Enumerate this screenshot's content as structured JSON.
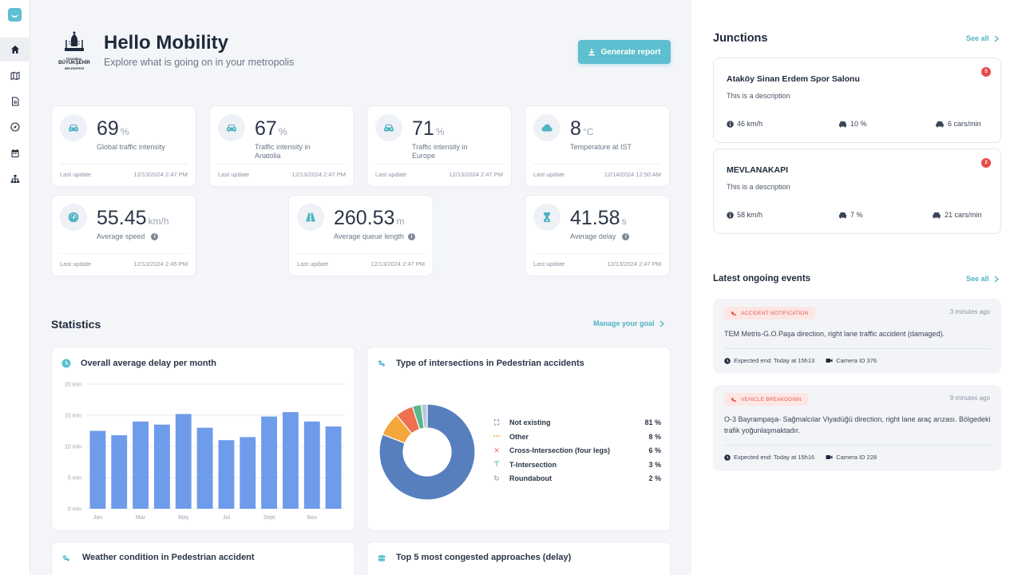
{
  "header": {
    "title": "Hello Mobility",
    "subtitle": "Explore what is going on in your metropolis",
    "brand_lines": [
      "İSTANBUL",
      "BÜYÜKŞEHİR",
      "BELEDİYESİ"
    ],
    "report_button": "Generate report"
  },
  "sidebar": {
    "items": [
      {
        "name": "home-icon",
        "active": true
      },
      {
        "name": "map-icon"
      },
      {
        "name": "document-icon"
      },
      {
        "name": "compass-icon"
      },
      {
        "name": "calendar-icon"
      },
      {
        "name": "network-icon"
      }
    ]
  },
  "kpis": [
    {
      "value": "69",
      "unit": "%",
      "label": "Global traffic intensity",
      "update_label": "Last update",
      "updated": "12/13/2024 2:47 PM",
      "icon": "car-icon"
    },
    {
      "value": "67",
      "unit": "%",
      "label": "Traffic intensity in Anatolia",
      "update_label": "Last update",
      "updated": "12/13/2024 2:47 PM",
      "icon": "car-icon"
    },
    {
      "value": "71",
      "unit": "%",
      "label": "Traffic intensity in Europe",
      "update_label": "Last update",
      "updated": "12/13/2024 2:47 PM",
      "icon": "car-icon"
    },
    {
      "value": "8",
      "unit": "°C",
      "label": "Temperature at IST",
      "update_label": "Last update",
      "updated": "12/14/2024 12:50 AM",
      "icon": "cloud-icon"
    },
    {
      "value": "55.45",
      "unit": "km/h",
      "label": "Average speed",
      "update_label": "Last update",
      "updated": "12/13/2024 2:45 PM",
      "icon": "speedometer-icon"
    },
    {
      "value": "260.53",
      "unit": "m",
      "label": "Average queue length",
      "update_label": "Last update",
      "updated": "12/13/2024 2:47 PM",
      "icon": "road-icon"
    },
    {
      "value": "41.58",
      "unit": "s",
      "label": "Average delay",
      "update_label": "Last update",
      "updated": "12/13/2024 2:47 PM",
      "icon": "hourglass-icon"
    }
  ],
  "statistics": {
    "title": "Statistics",
    "manage_link": "Manage your goal"
  },
  "delay_chart_title": "Overall average delay per month",
  "pedestrian_chart_title": "Type of intersections in Pedestrian accidents",
  "weather_title": "Weather condition in Pedestrian accident",
  "congested_title": "Top 5 most congested approaches (delay)",
  "chart_data": [
    {
      "type": "bar",
      "title": "Overall average delay per month",
      "categories": [
        "Jan",
        "Feb",
        "Mar",
        "Apr",
        "May",
        "Jun",
        "Jul",
        "Aug",
        "Sept",
        "Oct",
        "Nov",
        "Dec"
      ],
      "x_tick_labels": [
        "Jan",
        "",
        "Mar",
        "",
        "May",
        "",
        "Jul",
        "",
        "Sept",
        "",
        "Nov",
        ""
      ],
      "values": [
        12.5,
        11.8,
        14.0,
        13.5,
        15.2,
        13.0,
        11.0,
        11.5,
        14.8,
        15.5,
        14.0,
        13.2
      ],
      "y_ticks": [
        "0 min",
        "5 min",
        "10 min",
        "15 min",
        "20 min"
      ],
      "ylim": [
        0,
        20
      ],
      "ylabel": "",
      "color": "#6e9bea",
      "grid": true
    },
    {
      "type": "pie",
      "title": "Type of intersections in Pedestrian accidents",
      "donut": true,
      "slices": [
        {
          "label": "Not existing",
          "value": 81,
          "pct": "81 %",
          "color": "#577fbe",
          "icon": "⛶",
          "icon_color": "#5b7fb8"
        },
        {
          "label": "Other",
          "value": 8,
          "pct": "8 %",
          "color": "#f4a73b",
          "icon": "⋯",
          "icon_color": "#f4a73b"
        },
        {
          "label": "Cross-Intersection (four legs)",
          "value": 6,
          "pct": "6 %",
          "color": "#ef7050",
          "icon": "✕",
          "icon_color": "#ef7050"
        },
        {
          "label": "T-Intersection",
          "value": 3,
          "pct": "3 %",
          "color": "#5bb68b",
          "icon": "⊤",
          "icon_color": "#5bb68b"
        },
        {
          "label": "Roundabout",
          "value": 2,
          "pct": "2 %",
          "color": "#b9c7db",
          "icon": "↻",
          "icon_color": "#9aa3b2"
        }
      ]
    }
  ],
  "junctions": {
    "title": "Junctions",
    "see_all": "See all",
    "items": [
      {
        "name": "Ataköy Sinan Erdem Spor Salonu",
        "description": "This is a description",
        "badge": "5",
        "speed": "46 km/h",
        "truck": "10 %",
        "cars": "6 cars/min"
      },
      {
        "name": "MEVLANAKAPI",
        "description": "This is a description",
        "badge": "2",
        "speed": "58 km/h",
        "truck": "7 %",
        "cars": "21 cars/min"
      }
    ]
  },
  "events": {
    "title": "Latest ongoing events",
    "see_all": "See all",
    "items": [
      {
        "tag": "ACCIDENT NOTIFICATION",
        "time": "3 minutes ago",
        "text": "TEM Metris-G.O.Paşa direction, right lane traffic accident (damaged).",
        "expected": "Expected end: Today at 15h13",
        "camera": "Camera ID 376"
      },
      {
        "tag": "VEHICLE BREAKDOWN",
        "time": "9 minutes ago",
        "text": "O-3 Bayrampaşa- Sağmalcılar Viyadüğü direction, right lane araç arızası. Bölgedeki trafik yoğunlaşmaktadır.",
        "expected": "Expected end: Today at 15h16",
        "camera": "Camera ID 228"
      }
    ]
  },
  "colors": {
    "accent": "#5dbfcf",
    "badge": "#e84a4a",
    "bar": "#6e9bea"
  }
}
